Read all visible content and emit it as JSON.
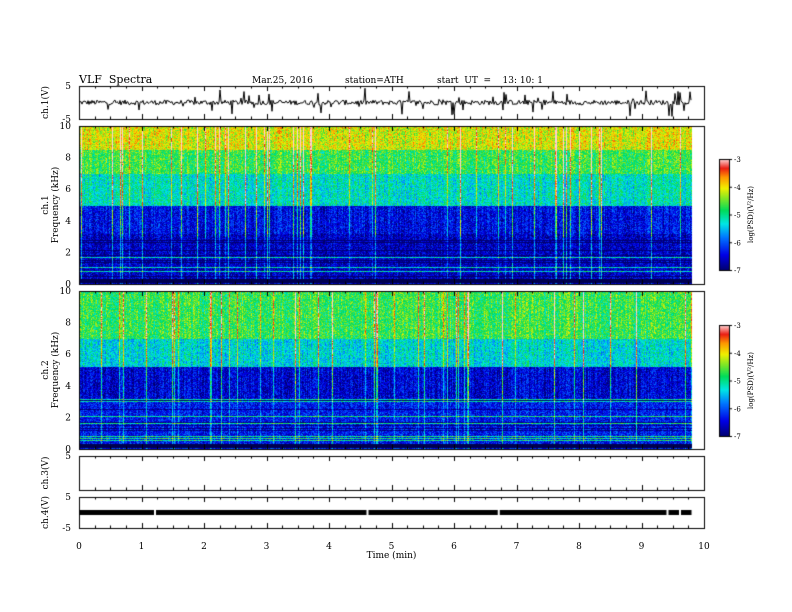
{
  "header": {
    "title": "VLF  Spectra",
    "date": "Mar.25, 2016",
    "station": "station=ATH",
    "start_ut": "start  UT  =    13: 10: 1"
  },
  "chart_data": [
    {
      "type": "line",
      "panel": "ch1-waveform",
      "ylabel": "ch.1(V)",
      "ylim": [
        -5,
        5
      ],
      "xlim": [
        0,
        10
      ],
      "yticks": [
        "5",
        "-5"
      ],
      "data_extent_min": [
        0,
        9.8
      ],
      "baseline_v": 0.0,
      "envelope_v": [
        -2.5,
        2.5
      ],
      "color": "#000000"
    },
    {
      "type": "heatmap",
      "panel": "ch1-spectrogram",
      "ylabel": "ch.1\nFrequency  (kHz)",
      "ylim": [
        0,
        10
      ],
      "xlim": [
        0,
        10
      ],
      "yticks": [
        "0",
        "2",
        "4",
        "6",
        "8",
        "10"
      ],
      "data_extent_min": [
        0,
        9.8
      ],
      "colorbar": {
        "label": "log(PSD)(V²/Hz)",
        "range": [
          -7,
          -3
        ],
        "ticks": [
          "-3",
          "-4",
          "-5",
          "-6",
          "-7"
        ]
      },
      "bands": [
        {
          "from_khz": 0,
          "to_khz": 3.2,
          "dominant_log_psd": -6.6
        },
        {
          "from_khz": 3.2,
          "to_khz": 5.0,
          "dominant_log_psd": -6.4
        },
        {
          "from_khz": 5.0,
          "to_khz": 7.0,
          "dominant_log_psd": -5.2
        },
        {
          "from_khz": 7.0,
          "to_khz": 8.5,
          "dominant_log_psd": -4.7
        },
        {
          "from_khz": 8.5,
          "to_khz": 10,
          "dominant_log_psd": -4.1
        }
      ]
    },
    {
      "type": "heatmap",
      "panel": "ch2-spectrogram",
      "ylabel": "ch.2\nFrequency  (kHz)",
      "ylim": [
        0,
        10
      ],
      "xlim": [
        0,
        10
      ],
      "yticks": [
        "0",
        "2",
        "4",
        "6",
        "8",
        "10"
      ],
      "data_extent_min": [
        0,
        9.8
      ],
      "colorbar": {
        "label": "log(PSD)(V²/Hz)",
        "range": [
          -7,
          -3
        ],
        "ticks": [
          "-3",
          "-4",
          "-5",
          "-6",
          "-7"
        ]
      },
      "bands": [
        {
          "from_khz": 0,
          "to_khz": 3.0,
          "dominant_log_psd": -6.3
        },
        {
          "from_khz": 3.0,
          "to_khz": 5.2,
          "dominant_log_psd": -6.5
        },
        {
          "from_khz": 5.2,
          "to_khz": 7.0,
          "dominant_log_psd": -5.3
        },
        {
          "from_khz": 7.0,
          "to_khz": 10,
          "dominant_log_psd": -4.7
        }
      ]
    },
    {
      "type": "line",
      "panel": "ch3-waveform",
      "ylabel": "ch.3(V)",
      "ylim": [
        -5,
        5
      ],
      "xlim": [
        0,
        10
      ],
      "yticks": [
        "5"
      ],
      "note": "flat, no signal"
    },
    {
      "type": "line",
      "panel": "ch4-waveform",
      "ylabel": "ch.4(V)",
      "ylim": [
        -5,
        5
      ],
      "xlim": [
        0,
        10
      ],
      "yticks": [
        "5",
        "-5"
      ],
      "data_extent_min": [
        0,
        9.8
      ],
      "baseline_v": 0.0,
      "color": "#000000"
    }
  ],
  "xaxis": {
    "label": "Time  (min)",
    "ticks": [
      "0",
      "1",
      "2",
      "3",
      "4",
      "5",
      "6",
      "7",
      "8",
      "9",
      "10"
    ],
    "range": [
      0,
      10
    ]
  }
}
